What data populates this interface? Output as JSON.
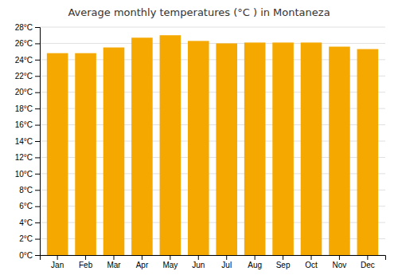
{
  "chart_data": {
    "type": "bar",
    "title": "Average monthly temperatures (°C ) in Montaneza",
    "categories": [
      "Jan",
      "Feb",
      "Mar",
      "Apr",
      "May",
      "Jun",
      "Jul",
      "Aug",
      "Sep",
      "Oct",
      "Nov",
      "Dec"
    ],
    "values": [
      24.8,
      24.8,
      25.5,
      26.7,
      27.0,
      26.3,
      26.0,
      26.1,
      26.1,
      26.1,
      25.6,
      25.3
    ],
    "color": "#F5A800",
    "ylim": [
      0,
      28
    ],
    "yticks": [
      {
        "value": 0,
        "label": "0°C"
      },
      {
        "value": 2,
        "label": "2°C"
      },
      {
        "value": 4,
        "label": "4°C"
      },
      {
        "value": 6,
        "label": "6°C"
      },
      {
        "value": 8,
        "label": "8°C"
      },
      {
        "value": 10,
        "label": "10°C"
      },
      {
        "value": 12,
        "label": "12°C"
      },
      {
        "value": 14,
        "label": "14°C"
      },
      {
        "value": 16,
        "label": "16°C"
      },
      {
        "value": 18,
        "label": "18°C"
      },
      {
        "value": 20,
        "label": "20°C"
      },
      {
        "value": 22,
        "label": "22°C"
      },
      {
        "value": 24,
        "label": "24°C"
      },
      {
        "value": 26,
        "label": "26°C"
      },
      {
        "value": 28,
        "label": "28°C"
      }
    ],
    "grid": true
  }
}
